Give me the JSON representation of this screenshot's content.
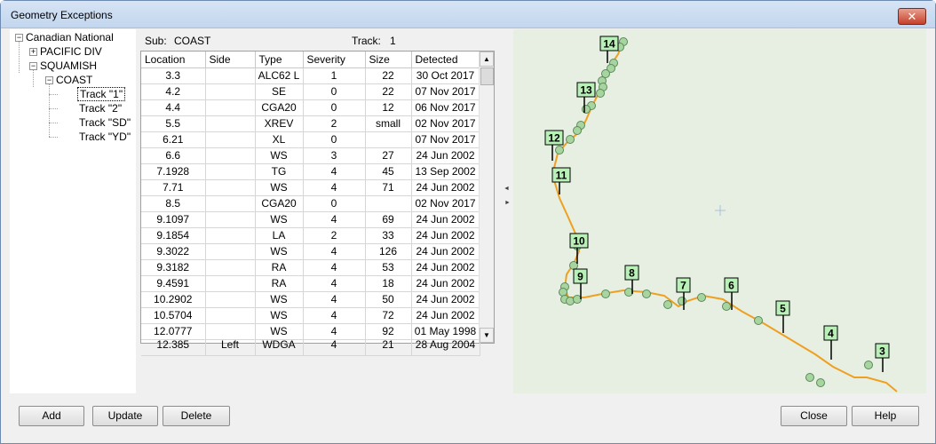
{
  "window": {
    "title": "Geometry Exceptions",
    "close_glyph": "✕"
  },
  "tree": {
    "root": "Canadian National",
    "div1": "PACIFIC DIV",
    "div2": "SQUAMISH",
    "sub": "COAST",
    "tracks": [
      "Track \"1\"",
      "Track \"2\"",
      "Track \"SD\"",
      "Track \"YD\""
    ],
    "plus": "+",
    "minus": "−"
  },
  "info": {
    "sub_label": "Sub:",
    "sub_value": "COAST",
    "track_label": "Track:",
    "track_value": "1"
  },
  "grid": {
    "columns": [
      "Location",
      "Side",
      "Type",
      "Severity",
      "Size",
      "Detected"
    ],
    "rows": [
      [
        "3.3",
        "",
        "ALC62 L",
        "1",
        "22",
        "30 Oct 2017"
      ],
      [
        "4.2",
        "",
        "SE",
        "0",
        "22",
        "07 Nov 2017"
      ],
      [
        "4.4",
        "",
        "CGA20",
        "0",
        "12",
        "06 Nov 2017"
      ],
      [
        "5.5",
        "",
        "XREV",
        "2",
        "small",
        "02 Nov 2017"
      ],
      [
        "6.21",
        "",
        "XL",
        "0",
        "",
        "07 Nov 2017"
      ],
      [
        "6.6",
        "",
        "WS",
        "3",
        "27",
        "24 Jun 2002"
      ],
      [
        "7.1928",
        "",
        "TG",
        "4",
        "45",
        "13 Sep 2002"
      ],
      [
        "7.71",
        "",
        "WS",
        "4",
        "71",
        "24 Jun 2002"
      ],
      [
        "8.5",
        "",
        "CGA20",
        "0",
        "",
        "02 Nov 2017"
      ],
      [
        "9.1097",
        "",
        "WS",
        "4",
        "69",
        "24 Jun 2002"
      ],
      [
        "9.1854",
        "",
        "LA",
        "2",
        "33",
        "24 Jun 2002"
      ],
      [
        "9.3022",
        "",
        "WS",
        "4",
        "126",
        "24 Jun 2002"
      ],
      [
        "9.3182",
        "",
        "RA",
        "4",
        "53",
        "24 Jun 2002"
      ],
      [
        "9.4591",
        "",
        "RA",
        "4",
        "18",
        "24 Jun 2002"
      ],
      [
        "10.2902",
        "",
        "WS",
        "4",
        "50",
        "24 Jun 2002"
      ],
      [
        "10.5704",
        "",
        "WS",
        "4",
        "72",
        "24 Jun 2002"
      ],
      [
        "12.0777",
        "",
        "WS",
        "4",
        "92",
        "01 May 1998"
      ],
      [
        "12.385",
        "Left",
        "WDGA",
        "4",
        "21",
        "28 Aug 2004"
      ]
    ],
    "scroll_up": "▲",
    "scroll_down": "▼"
  },
  "splitter": {
    "left": "◄",
    "right": "►"
  },
  "map": {
    "mileposts": [
      "14",
      "13",
      "12",
      "11",
      "10",
      "9",
      "8",
      "7",
      "6",
      "5",
      "4",
      "3"
    ],
    "track_color": "#f0a020",
    "marker_color": "#a8d4a0",
    "label_bg": "#b8f0b8"
  },
  "buttons": {
    "add": "Add",
    "update": "Update",
    "delete": "Delete",
    "close": "Close",
    "help": "Help"
  }
}
